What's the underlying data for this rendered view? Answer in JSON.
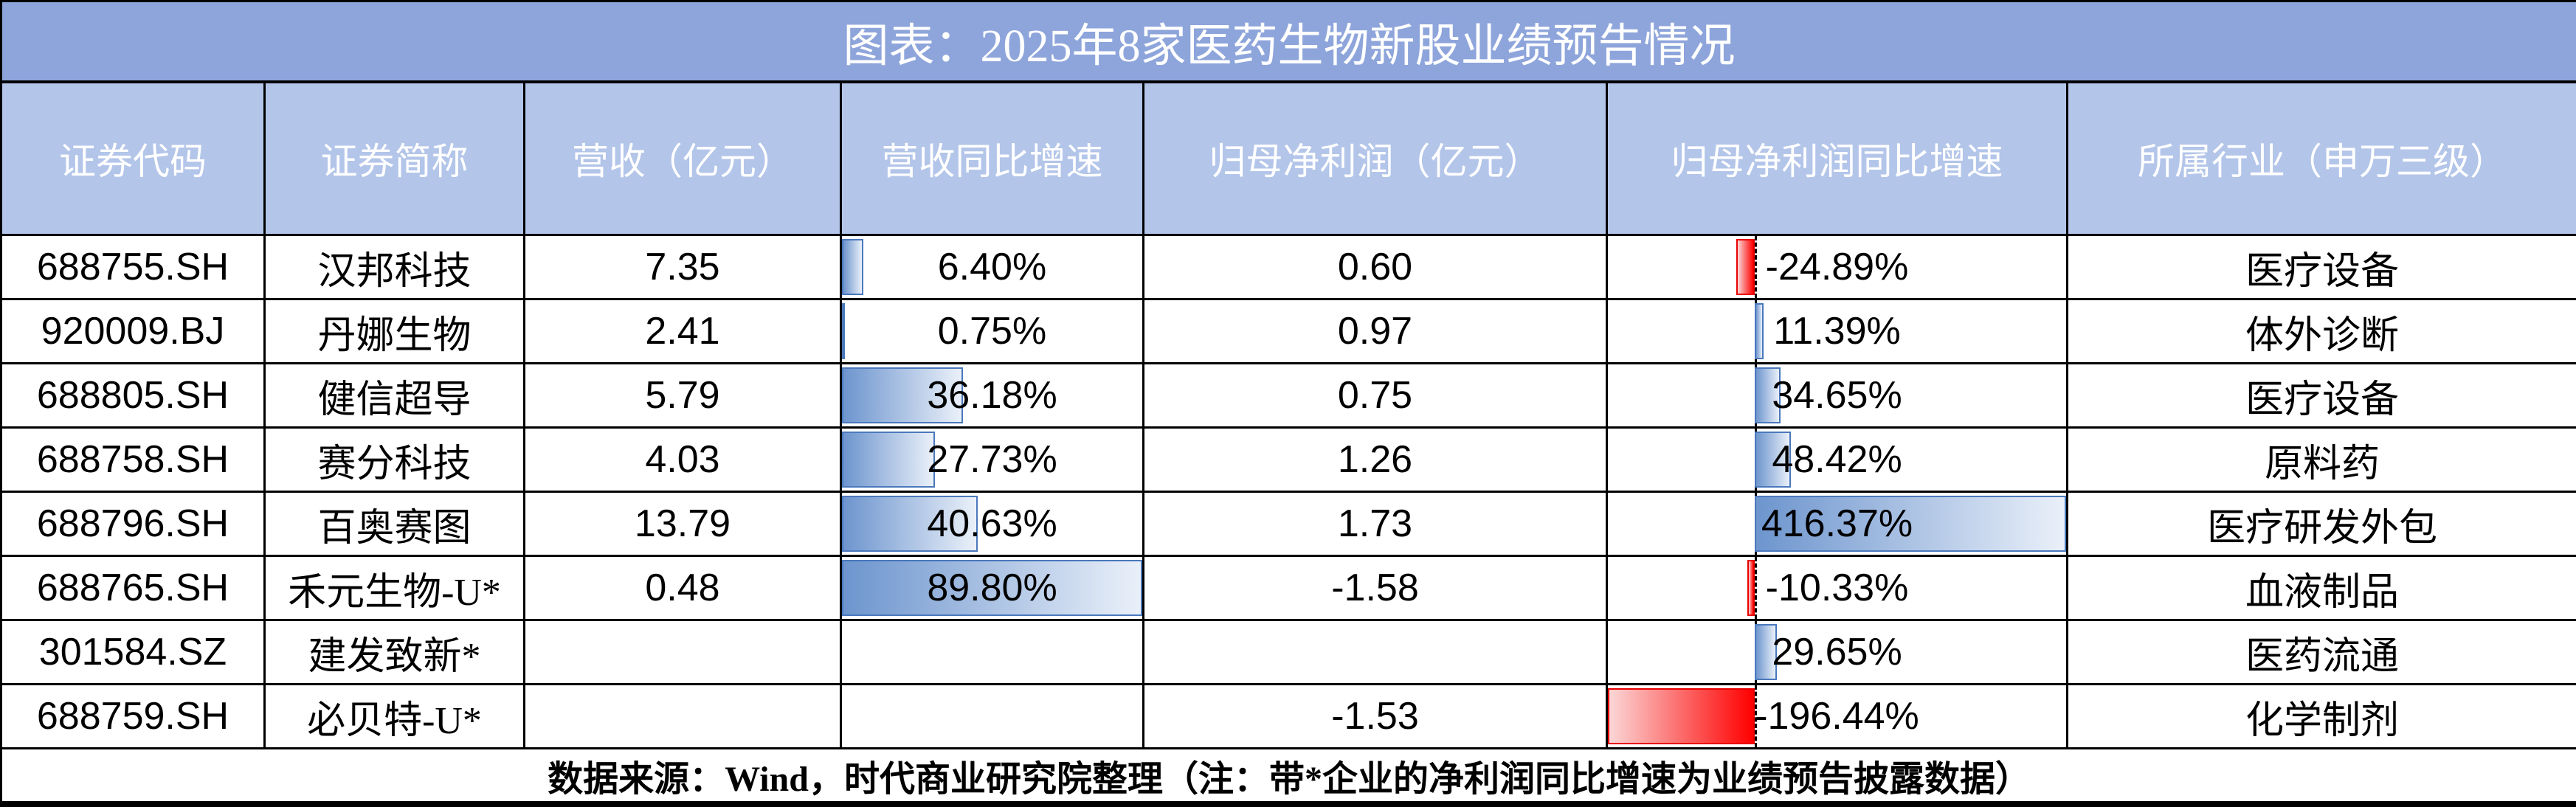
{
  "title": "图表：2025年8家医药生物新股业绩预告情况",
  "columns": [
    "证券代码",
    "证券简称",
    "营收（亿元）",
    "营收同比增速",
    "归母净利润（亿元）",
    "归母净利润同比增速",
    "所属行业（申万三级）"
  ],
  "rows": [
    {
      "code": "688755.SH",
      "name": "汉邦科技",
      "revenue": "7.35",
      "rev_growth_label": "6.40%",
      "rev_growth": 6.4,
      "profit": "0.60",
      "profit_growth_label": "-24.89%",
      "profit_growth": -24.89,
      "industry": "医疗设备"
    },
    {
      "code": "920009.BJ",
      "name": "丹娜生物",
      "revenue": "2.41",
      "rev_growth_label": "0.75%",
      "rev_growth": 0.75,
      "profit": "0.97",
      "profit_growth_label": "11.39%",
      "profit_growth": 11.39,
      "industry": "体外诊断"
    },
    {
      "code": "688805.SH",
      "name": "健信超导",
      "revenue": "5.79",
      "rev_growth_label": "36.18%",
      "rev_growth": 36.18,
      "profit": "0.75",
      "profit_growth_label": "34.65%",
      "profit_growth": 34.65,
      "industry": "医疗设备"
    },
    {
      "code": "688758.SH",
      "name": "赛分科技",
      "revenue": "4.03",
      "rev_growth_label": "27.73%",
      "rev_growth": 27.73,
      "profit": "1.26",
      "profit_growth_label": "48.42%",
      "profit_growth": 48.42,
      "industry": "原料药"
    },
    {
      "code": "688796.SH",
      "name": "百奥赛图",
      "revenue": "13.79",
      "rev_growth_label": "40.63%",
      "rev_growth": 40.63,
      "profit": "1.73",
      "profit_growth_label": "416.37%",
      "profit_growth": 416.37,
      "industry": "医疗研发外包"
    },
    {
      "code": "688765.SH",
      "name": "禾元生物-U*",
      "revenue": "0.48",
      "rev_growth_label": "89.80%",
      "rev_growth": 89.8,
      "profit": "-1.58",
      "profit_growth_label": "-10.33%",
      "profit_growth": -10.33,
      "industry": "血液制品"
    },
    {
      "code": "301584.SZ",
      "name": "建发致新*",
      "revenue": "",
      "rev_growth_label": "",
      "rev_growth": null,
      "profit": "",
      "profit_growth_label": "29.65%",
      "profit_growth": 29.65,
      "industry": "医药流通"
    },
    {
      "code": "688759.SH",
      "name": "必贝特-U*",
      "revenue": "",
      "rev_growth_label": "",
      "rev_growth": null,
      "profit": "-1.53",
      "profit_growth_label": "-196.44%",
      "profit_growth": -196.44,
      "industry": "化学制剂"
    }
  ],
  "footer": "数据来源：Wind，时代商业研究院整理（注：带*企业的净利润同比增速为业绩预告披露数据）",
  "bar_scales": {
    "rev_growth_max": 89.8,
    "profit_growth_min": -196.44,
    "profit_growth_max": 416.37
  },
  "colors": {
    "title_bg": "#8EA5DB",
    "header_bg": "#B3C5E9",
    "grid_border": "#000000",
    "blue_bar_solid": "#6D95CE",
    "blue_bar_fade": "#EAF0F9",
    "blue_bar_border": "#4A78BC",
    "red_bar_solid": "#FE0000",
    "red_bar_fade": "#FBD6D6",
    "red_bar_border": "#E90000"
  },
  "chart_data": {
    "type": "table",
    "title": "图表：2025年8家医药生物新股业绩预告情况",
    "columns": [
      "证券代码",
      "证券简称",
      "营收（亿元）",
      "营收同比增速",
      "归母净利润（亿元）",
      "归母净利润同比增速",
      "所属行业（申万三级）"
    ],
    "rows": [
      [
        "688755.SH",
        "汉邦科技",
        7.35,
        "6.40%",
        0.6,
        "-24.89%",
        "医疗设备"
      ],
      [
        "920009.BJ",
        "丹娜生物",
        2.41,
        "0.75%",
        0.97,
        "11.39%",
        "体外诊断"
      ],
      [
        "688805.SH",
        "健信超导",
        5.79,
        "36.18%",
        0.75,
        "34.65%",
        "医疗设备"
      ],
      [
        "688758.SH",
        "赛分科技",
        4.03,
        "27.73%",
        1.26,
        "48.42%",
        "原料药"
      ],
      [
        "688796.SH",
        "百奥赛图",
        13.79,
        "40.63%",
        1.73,
        "416.37%",
        "医疗研发外包"
      ],
      [
        "688765.SH",
        "禾元生物-U*",
        0.48,
        "89.80%",
        -1.58,
        "-10.33%",
        "血液制品"
      ],
      [
        "301584.SZ",
        "建发致新*",
        null,
        null,
        null,
        "29.65%",
        "医药流通"
      ],
      [
        "688759.SH",
        "必贝特-U*",
        null,
        null,
        -1.53,
        "-196.44%",
        "化学制剂"
      ]
    ],
    "data_bars": {
      "营收同比增速": {
        "style": "gradient-blue",
        "values": [
          6.4,
          0.75,
          36.18,
          27.73,
          40.63,
          89.8,
          null,
          null
        ],
        "axis": "left-edge",
        "max": 89.8
      },
      "归母净利润同比增速": {
        "style": "gradient-blue-positive-red-negative",
        "values": [
          -24.89,
          11.39,
          34.65,
          48.42,
          416.37,
          -10.33,
          29.65,
          -196.44
        ],
        "min": -196.44,
        "max": 416.37,
        "axis": "dashed line at 32.06% of column width"
      }
    },
    "footnote": "数据来源：Wind，时代商业研究院整理（注：带*企业的净利润同比增速为业绩预告披露数据）"
  }
}
